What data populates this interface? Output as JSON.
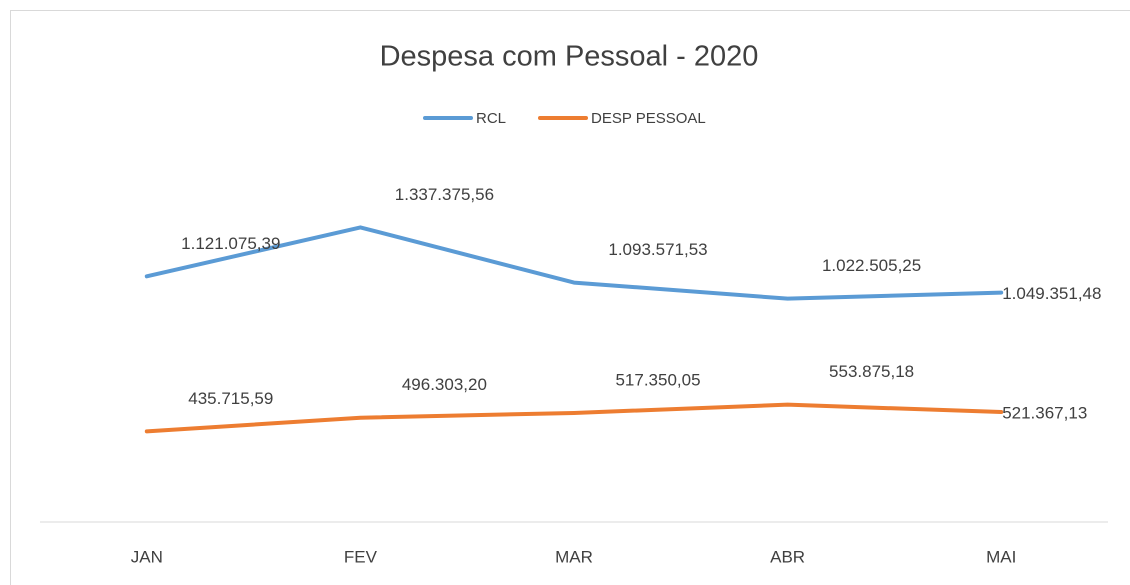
{
  "chart_data": {
    "type": "line",
    "title": "Despesa com Pessoal - 2020",
    "categories": [
      "JAN",
      "FEV",
      "MAR",
      "ABR",
      "MAI"
    ],
    "series": [
      {
        "name": "RCL",
        "color": "#5b9bd5",
        "values": [
          1121075.39,
          1337375.56,
          1093571.53,
          1022505.25,
          1049351.48
        ],
        "value_labels": [
          "1.121.075,39",
          "1.337.375,56",
          "1.093.571,53",
          "1.022.505,25",
          "1.049.351,48"
        ]
      },
      {
        "name": "DESP PESSOAL",
        "color": "#ed7d31",
        "values": [
          435715.59,
          496303.2,
          517350.05,
          553875.18,
          521367.13
        ],
        "value_labels": [
          "435.715,59",
          "496.303,20",
          "517.350,05",
          "553.875,18",
          "521.367,13"
        ]
      }
    ],
    "ylim": [
      0,
      1600000
    ],
    "legend": "top"
  }
}
